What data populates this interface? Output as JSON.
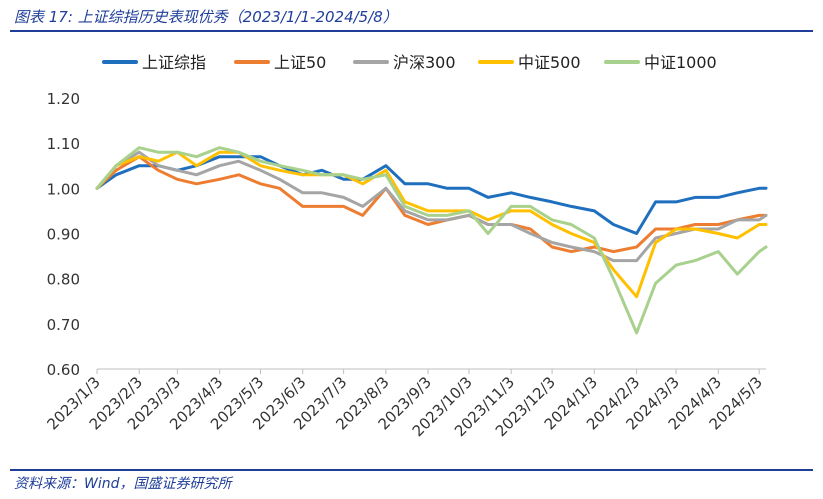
{
  "header": {
    "title": "图表 17:  上证综指历史表现优秀（2023/1/1-2024/5/8）"
  },
  "footer": {
    "source": "资料来源：Wind，国盛证券研究所"
  },
  "colors": {
    "rule": "#1f3e99",
    "axis_text": "#333333",
    "grid": "#d9d9d9"
  },
  "chart_data": {
    "type": "line",
    "title": "",
    "xlabel": "",
    "ylabel": "",
    "ylim": [
      0.6,
      1.2
    ],
    "yticks": [
      "0.60",
      "0.70",
      "0.80",
      "0.90",
      "1.00",
      "1.10",
      "1.20"
    ],
    "x_ticks": [
      "2023/1/3",
      "2023/2/3",
      "2023/3/3",
      "2023/4/3",
      "2023/5/3",
      "2023/6/3",
      "2023/7/3",
      "2023/8/3",
      "2023/9/3",
      "2023/10/3",
      "2023/11/3",
      "2023/12/3",
      "2024/1/3",
      "2024/2/3",
      "2024/3/3",
      "2024/4/3",
      "2024/5/3"
    ],
    "grid": false,
    "legend_position": "top",
    "x": [
      "2023/1/3",
      "2023/1/17",
      "2023/2/3",
      "2023/2/17",
      "2023/3/3",
      "2023/3/17",
      "2023/4/3",
      "2023/4/17",
      "2023/5/3",
      "2023/5/17",
      "2023/6/3",
      "2023/6/17",
      "2023/7/3",
      "2023/7/17",
      "2023/8/3",
      "2023/8/17",
      "2023/9/3",
      "2023/9/17",
      "2023/10/3",
      "2023/10/17",
      "2023/11/3",
      "2023/11/17",
      "2023/12/3",
      "2023/12/17",
      "2024/1/3",
      "2024/1/17",
      "2024/2/3",
      "2024/2/17",
      "2024/3/3",
      "2024/3/17",
      "2024/4/3",
      "2024/4/17",
      "2024/5/3",
      "2024/5/8"
    ],
    "series": [
      {
        "name": "上证综指",
        "color": "#1f6fbf",
        "values": [
          1.0,
          1.03,
          1.05,
          1.05,
          1.04,
          1.05,
          1.07,
          1.07,
          1.07,
          1.05,
          1.03,
          1.04,
          1.02,
          1.02,
          1.05,
          1.01,
          1.01,
          1.0,
          1.0,
          0.98,
          0.99,
          0.98,
          0.97,
          0.96,
          0.95,
          0.92,
          0.9,
          0.97,
          0.97,
          0.98,
          0.98,
          0.99,
          1.0,
          1.0
        ]
      },
      {
        "name": "上证50",
        "color": "#ed7d31",
        "values": [
          1.0,
          1.04,
          1.07,
          1.04,
          1.02,
          1.01,
          1.02,
          1.03,
          1.01,
          1.0,
          0.96,
          0.96,
          0.96,
          0.94,
          1.0,
          0.94,
          0.92,
          0.93,
          0.94,
          0.92,
          0.92,
          0.91,
          0.87,
          0.86,
          0.87,
          0.86,
          0.87,
          0.91,
          0.91,
          0.92,
          0.92,
          0.93,
          0.94,
          0.94
        ]
      },
      {
        "name": "沪深300",
        "color": "#a5a5a5",
        "values": [
          1.0,
          1.05,
          1.08,
          1.05,
          1.04,
          1.03,
          1.05,
          1.06,
          1.04,
          1.02,
          0.99,
          0.99,
          0.98,
          0.96,
          1.0,
          0.95,
          0.93,
          0.93,
          0.94,
          0.92,
          0.92,
          0.9,
          0.88,
          0.87,
          0.86,
          0.84,
          0.84,
          0.89,
          0.9,
          0.91,
          0.91,
          0.93,
          0.93,
          0.94
        ]
      },
      {
        "name": "中证500",
        "color": "#ffc000",
        "values": [
          1.0,
          1.05,
          1.07,
          1.06,
          1.08,
          1.05,
          1.08,
          1.08,
          1.05,
          1.04,
          1.03,
          1.03,
          1.03,
          1.01,
          1.04,
          0.97,
          0.95,
          0.95,
          0.95,
          0.93,
          0.95,
          0.95,
          0.92,
          0.9,
          0.88,
          0.82,
          0.76,
          0.88,
          0.91,
          0.91,
          0.9,
          0.89,
          0.92,
          0.92
        ]
      },
      {
        "name": "中证1000",
        "color": "#a9d18e",
        "values": [
          1.0,
          1.05,
          1.09,
          1.08,
          1.08,
          1.07,
          1.09,
          1.08,
          1.06,
          1.05,
          1.04,
          1.03,
          1.03,
          1.02,
          1.03,
          0.96,
          0.94,
          0.94,
          0.95,
          0.9,
          0.96,
          0.96,
          0.93,
          0.92,
          0.89,
          0.8,
          0.68,
          0.79,
          0.83,
          0.84,
          0.86,
          0.81,
          0.86,
          0.87
        ]
      }
    ]
  }
}
